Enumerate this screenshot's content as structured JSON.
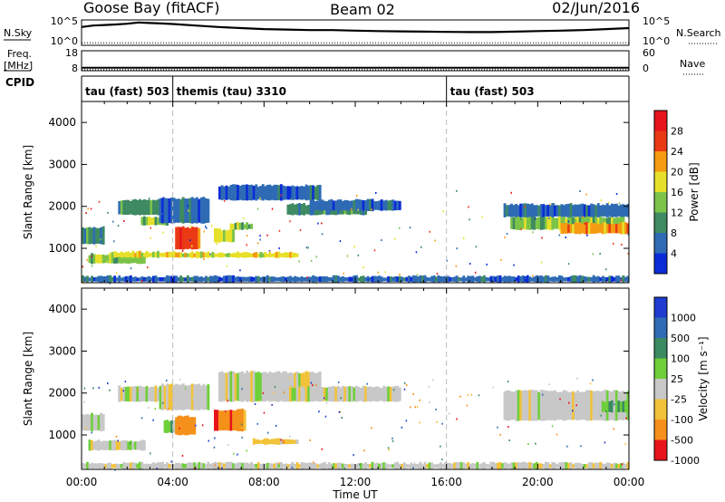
{
  "header": {
    "station": "Goose Bay (fitACF)",
    "beam": "Beam 02",
    "date": "02/Jun/2016"
  },
  "chart_data": [
    {
      "type": "line",
      "panel": "noise",
      "left_label": "N.Sky",
      "right_label": "N.Search",
      "left_ticks": [
        "10^5",
        "10^0"
      ],
      "right_ticks": [
        "10^5",
        "10^0"
      ],
      "series": [
        {
          "x": [
            0,
            0.5,
            1,
            1.5,
            2,
            2.5,
            3,
            3.5,
            4,
            5,
            6,
            7,
            8,
            9,
            10,
            11,
            12,
            13,
            14,
            15,
            16,
            17,
            18,
            19,
            20,
            21,
            22,
            23,
            24
          ],
          "values": [
            0.72,
            0.78,
            0.8,
            0.82,
            0.85,
            0.9,
            0.88,
            0.86,
            0.84,
            0.78,
            0.72,
            0.68,
            0.64,
            0.62,
            0.6,
            0.6,
            0.58,
            0.56,
            0.55,
            0.54,
            0.53,
            0.52,
            0.52,
            0.54,
            0.56,
            0.58,
            0.6,
            0.64,
            0.68
          ]
        },
        {
          "x": [
            0,
            24
          ],
          "values": [
            0.1,
            0.1
          ]
        }
      ]
    },
    {
      "type": "line",
      "panel": "frequency",
      "left_label": "Freq. [MHz]",
      "right_label": "Nave",
      "left_ticks": [
        "18",
        "8"
      ],
      "right_ticks": [
        "60",
        "0"
      ],
      "series": [
        {
          "x": [
            0,
            24
          ],
          "values": [
            0.15,
            0.15
          ]
        },
        {
          "x": [
            0,
            24
          ],
          "values": [
            0.05,
            0.05
          ]
        }
      ]
    },
    {
      "type": "table",
      "panel": "cpid",
      "label": "CPID",
      "segments": [
        {
          "start": 0,
          "end": 4,
          "text": "tau (fast) 503"
        },
        {
          "start": 4,
          "end": 16,
          "text": "themis (tau) 3310"
        },
        {
          "start": 16,
          "end": 24,
          "text": "tau (fast) 503"
        }
      ]
    },
    {
      "type": "heatmap",
      "panel": "power",
      "ylabel": "Slant Range [km]",
      "ylim": [
        180,
        4500
      ],
      "y_ticks": [
        1000,
        2000,
        3000,
        4000
      ],
      "colorbar": {
        "label": "Power [dB]",
        "ticks": [
          "4",
          "8",
          "12",
          "16",
          "20",
          "24",
          "28"
        ],
        "colors": [
          "#0b2bd8",
          "#2f6bb5",
          "#3e8a62",
          "#7cc34a",
          "#e6e02a",
          "#f59b12",
          "#ea3a14",
          "#e8141c"
        ]
      },
      "bands": [
        {
          "t0": 0.0,
          "t1": 1.0,
          "r0": 1100,
          "r1": 1500,
          "c": 2
        },
        {
          "t0": 0.3,
          "t1": 2.8,
          "r0": 640,
          "r1": 860,
          "c": 3
        },
        {
          "t0": 1.2,
          "t1": 4.3,
          "r0": 780,
          "r1": 920,
          "c": 4
        },
        {
          "t0": 1.6,
          "t1": 3.4,
          "r0": 1800,
          "r1": 2150,
          "c": 2
        },
        {
          "t0": 2.6,
          "t1": 3.8,
          "r0": 1550,
          "r1": 1750,
          "c": 3
        },
        {
          "t0": 3.4,
          "t1": 5.6,
          "r0": 1600,
          "r1": 2200,
          "c": 1
        },
        {
          "t0": 4.1,
          "t1": 5.2,
          "r0": 980,
          "r1": 1500,
          "c": 6
        },
        {
          "t0": 5.8,
          "t1": 6.7,
          "r0": 1150,
          "r1": 1450,
          "c": 4
        },
        {
          "t0": 4.0,
          "t1": 9.5,
          "r0": 780,
          "r1": 900,
          "c": 4
        },
        {
          "t0": 6.5,
          "t1": 7.5,
          "r0": 1450,
          "r1": 1600,
          "c": 3
        },
        {
          "t0": 6.0,
          "t1": 10.5,
          "r0": 2150,
          "r1": 2500,
          "c": 1
        },
        {
          "t0": 9.0,
          "t1": 12.5,
          "r0": 1800,
          "r1": 2050,
          "c": 2
        },
        {
          "t0": 10.0,
          "t1": 14.0,
          "r0": 1900,
          "r1": 2150,
          "c": 1
        },
        {
          "t0": 18.8,
          "t1": 23.8,
          "r0": 1450,
          "r1": 1750,
          "c": 3
        },
        {
          "t0": 21.0,
          "t1": 24.0,
          "r0": 1350,
          "r1": 1600,
          "c": 5
        },
        {
          "t0": 18.5,
          "t1": 24.0,
          "r0": 1750,
          "r1": 2050,
          "c": 1
        },
        {
          "t0": 0.0,
          "t1": 24.0,
          "r0": 200,
          "r1": 330,
          "c": 1
        }
      ]
    },
    {
      "type": "heatmap",
      "panel": "velocity",
      "xlabel": "Time UT",
      "ylabel": "Slant Range [km]",
      "ylim": [
        180,
        4500
      ],
      "y_ticks": [
        1000,
        2000,
        3000,
        4000
      ],
      "x_ticks": [
        "00:00",
        "04:00",
        "08:00",
        "12:00",
        "16:00",
        "20:00",
        "00:00"
      ],
      "colorbar": {
        "label": "Velocity [m s⁻¹]",
        "ticks": [
          "1000",
          "500",
          "100",
          "25",
          "-25",
          "-100",
          "-500",
          "-1000"
        ],
        "colors": [
          "#1f3bd0",
          "#2f6bb5",
          "#3a8a62",
          "#6fcf3a",
          "#c8c8c8",
          "#f2c23a",
          "#f5901a",
          "#e8141c"
        ]
      },
      "bands": [
        {
          "t0": 0.0,
          "t1": 1.0,
          "r0": 1100,
          "r1": 1500,
          "c": 4
        },
        {
          "t0": 0.3,
          "t1": 2.8,
          "r0": 640,
          "r1": 860,
          "c": 4
        },
        {
          "t0": 1.6,
          "t1": 4.0,
          "r0": 1800,
          "r1": 2150,
          "c": 4
        },
        {
          "t0": 3.4,
          "t1": 5.6,
          "r0": 1600,
          "r1": 2200,
          "c": 4
        },
        {
          "t0": 3.6,
          "t1": 4.4,
          "r0": 1050,
          "r1": 1350,
          "c": 3
        },
        {
          "t0": 4.1,
          "t1": 5.0,
          "r0": 1000,
          "r1": 1450,
          "c": 6
        },
        {
          "t0": 5.8,
          "t1": 7.2,
          "r0": 1100,
          "r1": 1600,
          "c": 6
        },
        {
          "t0": 6.0,
          "t1": 10.5,
          "r0": 1800,
          "r1": 2500,
          "c": 4
        },
        {
          "t0": 7.5,
          "t1": 9.5,
          "r0": 780,
          "r1": 900,
          "c": 5
        },
        {
          "t0": 9.0,
          "t1": 14.0,
          "r0": 1800,
          "r1": 2150,
          "c": 4
        },
        {
          "t0": 18.5,
          "t1": 24.0,
          "r0": 1350,
          "r1": 2050,
          "c": 4
        },
        {
          "t0": 22.8,
          "t1": 24.0,
          "r0": 1550,
          "r1": 1800,
          "c": 3
        },
        {
          "t0": 0.0,
          "t1": 24.0,
          "r0": 200,
          "r1": 330,
          "c": 4
        }
      ]
    }
  ]
}
